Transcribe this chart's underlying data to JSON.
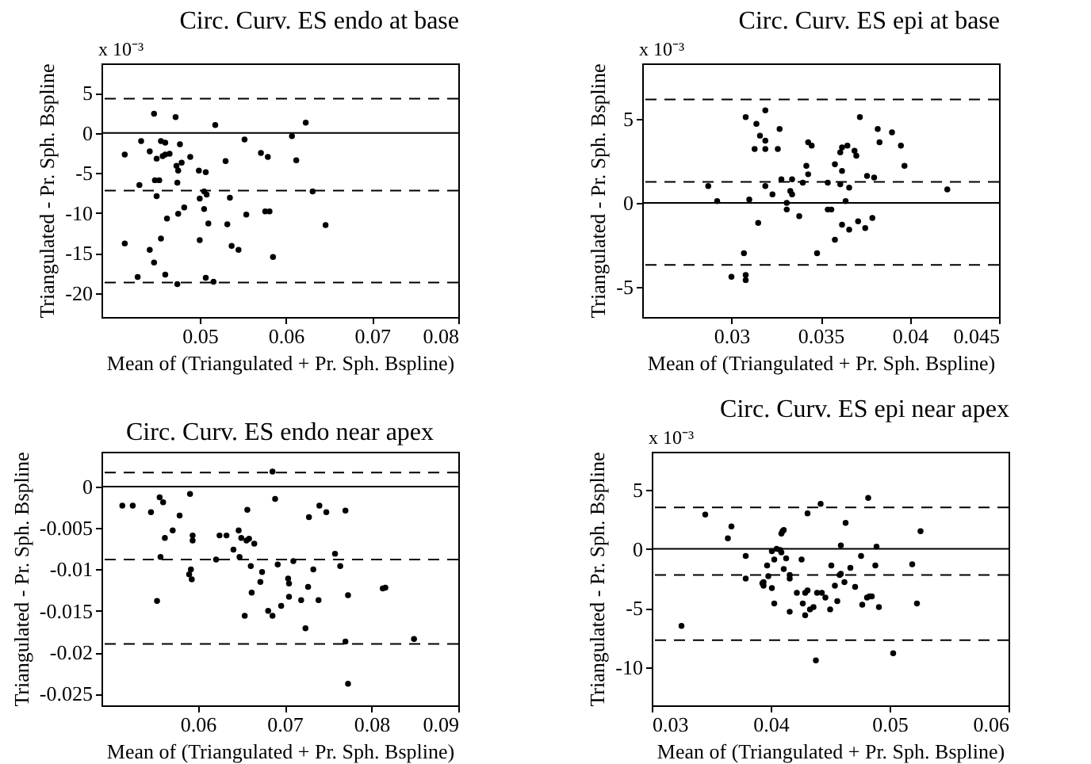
{
  "chart_data": [
    {
      "type": "scatter",
      "title": "Circ. Curv. ES endo at base",
      "xlabel": "Mean of (Triangulated + Pr. Sph. Bspline)",
      "ylabel": "Triangulated - Pr. Sph. Bspline",
      "annotations": [
        "x 10⁻³"
      ],
      "marker": "circle",
      "color": "#000000",
      "x": [
        0.0413,
        0.0413,
        0.043,
        0.0432,
        0.0428,
        0.0442,
        0.0442,
        0.0447,
        0.0447,
        0.0448,
        0.0453,
        0.045,
        0.045,
        0.0455,
        0.0455,
        0.0457,
        0.046,
        0.046,
        0.046,
        0.0462,
        0.0465,
        0.0472,
        0.0473,
        0.0474,
        0.0474,
        0.0475,
        0.0477,
        0.0475,
        0.0479,
        0.0482,
        0.0489,
        0.0499,
        0.05,
        0.05,
        0.0505,
        0.0505,
        0.0507,
        0.0507,
        0.0508,
        0.051,
        0.0518,
        0.0516,
        0.053,
        0.0532,
        0.0535,
        0.0537,
        0.0545,
        0.0552,
        0.0554,
        0.0571,
        0.0576,
        0.0579,
        0.0581,
        0.0585,
        0.0607,
        0.0612,
        0.0623,
        0.0631,
        0.0646
      ],
      "values": [
        -13.8,
        -2.7,
        -6.5,
        -1.0,
        -18.0,
        -14.6,
        -2.3,
        2.4,
        -16.2,
        -5.9,
        -5.9,
        -7.9,
        -3.2,
        -1.0,
        -13.2,
        -2.9,
        -1.2,
        -2.7,
        -17.7,
        -10.7,
        -2.6,
        2.0,
        -4.1,
        -6.2,
        -18.9,
        -4.7,
        -1.4,
        -10.1,
        -3.7,
        -9.3,
        -3.0,
        -4.7,
        -8.2,
        -13.4,
        -7.3,
        -9.5,
        -4.9,
        -18.1,
        -7.7,
        -11.3,
        1.0,
        -18.6,
        -3.5,
        -11.4,
        -8.1,
        -14.1,
        -14.6,
        -0.8,
        -10.2,
        -2.5,
        -9.8,
        -3.0,
        -9.8,
        -15.5,
        -0.4,
        -3.4,
        1.3,
        -7.3,
        -11.5
      ],
      "xlim": [
        0.0386,
        0.08
      ],
      "ylim": [
        -23,
        8.7
      ],
      "xticks": [
        0.05,
        0.06,
        0.07,
        0.08
      ],
      "yticks": [
        5,
        0,
        -5,
        -10,
        -15,
        -20
      ],
      "ref_lines": [
        {
          "axis": "y",
          "value": 0,
          "color": "#000000",
          "line_style": "solid"
        },
        {
          "axis": "y",
          "value": 4.3,
          "color": "#000000",
          "line_style": "dashed"
        },
        {
          "axis": "y",
          "value": -7.2,
          "color": "#000000",
          "line_style": "dashed"
        },
        {
          "axis": "y",
          "value": -18.7,
          "color": "#000000",
          "line_style": "dashed"
        }
      ]
    },
    {
      "type": "scatter",
      "title": "Circ. Curv. ES epi at base",
      "xlabel": "Mean of (Triangulated + Pr. Sph. Bspline)",
      "ylabel": "Triangulated - Pr. Sph. Bspline",
      "annotations": [
        "x 10⁻³"
      ],
      "marker": "circle",
      "color": "#000000",
      "x": [
        0.0287,
        0.0292,
        0.03,
        0.0308,
        0.0307,
        0.0308,
        0.0308,
        0.031,
        0.0313,
        0.0314,
        0.0315,
        0.0316,
        0.0319,
        0.0319,
        0.0319,
        0.0319,
        0.0323,
        0.0326,
        0.0327,
        0.0328,
        0.0331,
        0.0331,
        0.0333,
        0.0334,
        0.0334,
        0.0338,
        0.034,
        0.0342,
        0.0343,
        0.0343,
        0.0345,
        0.0348,
        0.0354,
        0.0354,
        0.0356,
        0.0358,
        0.0358,
        0.0361,
        0.0362,
        0.0362,
        0.0361,
        0.0362,
        0.0364,
        0.0365,
        0.0366,
        0.0366,
        0.0369,
        0.037,
        0.0371,
        0.0372,
        0.0375,
        0.0376,
        0.0379,
        0.038,
        0.0382,
        0.0383,
        0.039,
        0.0395,
        0.0397,
        0.0421
      ],
      "values": [
        1.0,
        0.1,
        -4.4,
        5.1,
        -3.0,
        -4.3,
        -4.6,
        0.2,
        3.2,
        4.7,
        -1.2,
        4.0,
        3.7,
        5.5,
        3.2,
        1.0,
        0.5,
        3.2,
        4.4,
        1.4,
        0.0,
        -0.4,
        0.7,
        0.5,
        1.4,
        -0.8,
        1.2,
        2.2,
        3.6,
        1.7,
        3.4,
        -3.0,
        1.2,
        -0.4,
        -0.4,
        -2.2,
        2.3,
        3.0,
        3.3,
        1.9,
        1.1,
        -1.3,
        0.1,
        3.4,
        0.9,
        -1.6,
        3.1,
        2.8,
        -1.1,
        5.1,
        -1.5,
        1.6,
        -0.9,
        1.5,
        4.4,
        3.6,
        4.2,
        3.4,
        2.2,
        0.8
      ],
      "xlim": [
        0.025,
        0.045
      ],
      "ylim": [
        -6.8,
        8.3
      ],
      "xticks": [
        0.03,
        0.035,
        0.04,
        0.045
      ],
      "yticks": [
        5,
        0,
        -5
      ],
      "ref_lines": [
        {
          "axis": "y",
          "value": 0,
          "color": "#000000",
          "line_style": "solid"
        },
        {
          "axis": "y",
          "value": 6.15,
          "color": "#000000",
          "line_style": "dashed"
        },
        {
          "axis": "y",
          "value": 1.25,
          "color": "#000000",
          "line_style": "dashed"
        },
        {
          "axis": "y",
          "value": -3.7,
          "color": "#000000",
          "line_style": "dashed"
        }
      ]
    },
    {
      "type": "scatter",
      "title": "Circ. Curv. ES endo near apex",
      "xlabel": "Mean of (Triangulated + Pr. Sph. Bspline)",
      "ylabel": "Triangulated - Pr. Sph. Bspline",
      "marker": "circle",
      "color": "#000000",
      "x": [
        0.0513,
        0.0525,
        0.0546,
        0.0553,
        0.0556,
        0.0557,
        0.056,
        0.0562,
        0.0571,
        0.0579,
        0.059,
        0.0591,
        0.0592,
        0.0593,
        0.0594,
        0.0594,
        0.0621,
        0.0625,
        0.0633,
        0.0641,
        0.0647,
        0.0648,
        0.065,
        0.0654,
        0.0656,
        0.0657,
        0.0659,
        0.0661,
        0.0662,
        0.0665,
        0.0672,
        0.0674,
        0.0681,
        0.0686,
        0.0686,
        0.0689,
        0.0692,
        0.0696,
        0.0704,
        0.0705,
        0.0705,
        0.071,
        0.0719,
        0.0724,
        0.0727,
        0.0728,
        0.0733,
        0.074,
        0.0739,
        0.0748,
        0.0758,
        0.0764,
        0.077,
        0.077,
        0.0773,
        0.0773,
        0.0813,
        0.0816,
        0.0849
      ],
      "values": [
        -0.0023,
        -0.0023,
        -0.0031,
        -0.0138,
        -0.0013,
        -0.0085,
        -0.0019,
        -0.0062,
        -0.0053,
        -0.0035,
        -0.0106,
        -0.0009,
        -0.01,
        -0.0112,
        -0.0059,
        -0.0065,
        -0.0088,
        -0.0059,
        -0.0059,
        -0.0076,
        -0.0053,
        -0.0085,
        -0.0062,
        -0.0156,
        -0.0065,
        -0.0028,
        -0.0063,
        -0.0096,
        -0.0128,
        -0.0069,
        -0.0115,
        -0.0103,
        -0.015,
        -0.0156,
        0.0018,
        -0.0015,
        -0.0094,
        -0.0144,
        -0.0111,
        -0.0117,
        -0.0133,
        -0.009,
        -0.0137,
        -0.0171,
        -0.0121,
        -0.0037,
        -0.01,
        -0.0023,
        -0.0137,
        -0.0031,
        -0.0081,
        -0.0096,
        -0.0029,
        -0.0187,
        -0.0131,
        -0.0238,
        -0.0123,
        -0.0122,
        -0.0184
      ],
      "xlim": [
        0.0489,
        0.09
      ],
      "ylim": [
        -0.0264,
        0.0042
      ],
      "xticks": [
        0.06,
        0.07,
        0.08,
        0.09
      ],
      "yticks": [
        0,
        -0.005,
        -0.01,
        -0.015,
        -0.02,
        -0.025
      ],
      "ref_lines": [
        {
          "axis": "y",
          "value": 0,
          "color": "#000000",
          "line_style": "solid"
        },
        {
          "axis": "y",
          "value": 0.0017,
          "color": "#000000",
          "line_style": "dashed"
        },
        {
          "axis": "y",
          "value": -0.0088,
          "color": "#000000",
          "line_style": "dashed"
        },
        {
          "axis": "y",
          "value": -0.019,
          "color": "#000000",
          "line_style": "dashed"
        }
      ]
    },
    {
      "type": "scatter",
      "title": "Circ. Curv. ES epi near apex",
      "xlabel": "Mean of (Triangulated + Pr. Sph. Bspline)",
      "ylabel": "Triangulated - Pr. Sph. Bspline",
      "annotations": [
        "x 10⁻³"
      ],
      "marker": "circle",
      "color": "#000000",
      "x": [
        0.0325,
        0.0345,
        0.0364,
        0.0367,
        0.0379,
        0.0379,
        0.0393,
        0.0394,
        0.0394,
        0.0397,
        0.0398,
        0.0401,
        0.0401,
        0.0403,
        0.0403,
        0.0405,
        0.0408,
        0.0409,
        0.041,
        0.0411,
        0.0409,
        0.0411,
        0.0413,
        0.0416,
        0.0416,
        0.0416,
        0.0422,
        0.0426,
        0.0427,
        0.0429,
        0.0429,
        0.0431,
        0.0431,
        0.0433,
        0.0436,
        0.0438,
        0.0439,
        0.0442,
        0.0443,
        0.0446,
        0.045,
        0.0451,
        0.0454,
        0.0456,
        0.0458,
        0.0459,
        0.0459,
        0.0462,
        0.0463,
        0.0467,
        0.0471,
        0.0476,
        0.0477,
        0.0481,
        0.0482,
        0.0483,
        0.0485,
        0.0488,
        0.0489,
        0.0491,
        0.0503,
        0.0519,
        0.0523,
        0.0526
      ],
      "values": [
        -6.5,
        2.9,
        0.9,
        1.9,
        -0.6,
        -2.5,
        -2.9,
        -3.1,
        -2.8,
        -1.4,
        -2.3,
        -3.3,
        -0.2,
        -4.6,
        -0.9,
        0.0,
        -0.1,
        1.3,
        1.5,
        1.6,
        -0.3,
        -1.7,
        -0.8,
        -2.2,
        -2.5,
        -5.3,
        -3.7,
        -0.9,
        -4.6,
        -5.6,
        -3.7,
        -3.5,
        3.0,
        -5.1,
        -4.9,
        -9.4,
        -3.7,
        3.8,
        -3.7,
        -4.1,
        -5.1,
        -1.4,
        -3.1,
        -4.4,
        -2.2,
        0.3,
        -2.1,
        -2.8,
        2.2,
        -1.6,
        -3.2,
        -0.6,
        -4.7,
        -4.1,
        4.3,
        -4.0,
        -4.0,
        -1.4,
        0.2,
        -4.9,
        -8.8,
        -1.3,
        -4.6,
        1.5
      ],
      "xlim": [
        0.03,
        0.06
      ],
      "ylim": [
        -13.2,
        8.2
      ],
      "xticks": [
        0.03,
        0.04,
        0.05,
        0.06
      ],
      "yticks": [
        5,
        0,
        -5,
        -10
      ],
      "ref_lines": [
        {
          "axis": "y",
          "value": 0,
          "color": "#000000",
          "line_style": "solid"
        },
        {
          "axis": "y",
          "value": 3.5,
          "color": "#000000",
          "line_style": "dashed"
        },
        {
          "axis": "y",
          "value": -2.2,
          "color": "#000000",
          "line_style": "dashed"
        },
        {
          "axis": "y",
          "value": -7.7,
          "color": "#000000",
          "line_style": "dashed"
        }
      ]
    }
  ]
}
